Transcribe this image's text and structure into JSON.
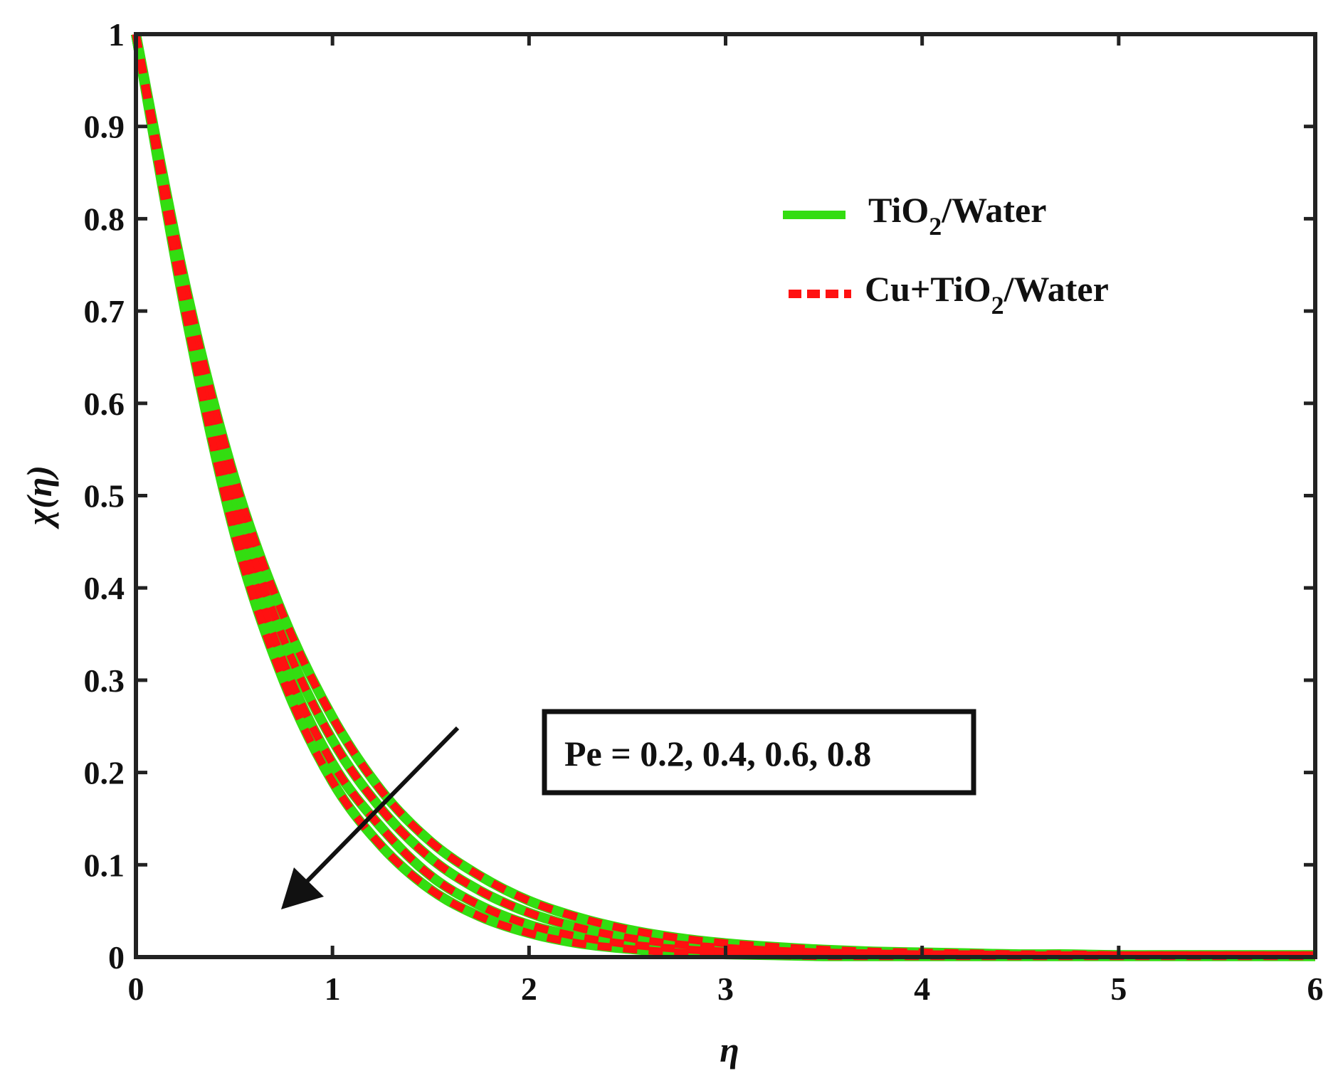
{
  "chart_data": {
    "type": "line",
    "xlabel": "η",
    "ylabel": "χ(η)",
    "xlim": [
      0,
      6
    ],
    "ylim": [
      0,
      1
    ],
    "x_ticks": [
      0,
      1,
      2,
      3,
      4,
      5,
      6
    ],
    "y_ticks": [
      0,
      0.1,
      0.2,
      0.3,
      0.4,
      0.5,
      0.6,
      0.7,
      0.8,
      0.9,
      1
    ],
    "x_tick_labels": [
      "0",
      "1",
      "2",
      "3",
      "4",
      "5",
      "6"
    ],
    "y_tick_labels": [
      "0",
      "0.1",
      "0.2",
      "0.3",
      "0.4",
      "0.5",
      "0.6",
      "0.7",
      "0.8",
      "0.9",
      "1"
    ],
    "grid": false,
    "legend_position": "top-right",
    "legend": [
      {
        "label": "TiO",
        "sub": "2",
        "suffix": "/Water",
        "color": "#33dd11",
        "style": "solid"
      },
      {
        "label": "Cu+TiO",
        "sub": "2",
        "suffix": "/Water",
        "color": "#ff1111",
        "style": "dashed"
      }
    ],
    "annotation": {
      "text": "Pe = 0.2, 0.4, 0.6, 0.8",
      "arrow": "decreasing direction"
    },
    "x": [
      0,
      0.25,
      0.5,
      0.75,
      1,
      1.25,
      1.5,
      1.75,
      2,
      2.25,
      2.5,
      2.75,
      3,
      3.25,
      3.5,
      3.75,
      4,
      4.25,
      4.5,
      4.75,
      5,
      5.25,
      5.5,
      5.75,
      6
    ],
    "series": [
      {
        "name": "TiO2/Water",
        "color": "#33dd11",
        "style": "solid",
        "curves": [
          [
            1.0,
            0.73,
            0.52,
            0.37,
            0.26,
            0.18,
            0.125,
            0.088,
            0.061,
            0.043,
            0.03,
            0.021,
            0.015,
            0.011,
            0.008,
            0.006,
            0.005,
            0.004,
            0.003,
            0.003,
            0.002,
            0.002,
            0.002,
            0.002,
            0.002
          ],
          [
            1.0,
            0.72,
            0.5,
            0.345,
            0.235,
            0.16,
            0.107,
            0.072,
            0.048,
            0.032,
            0.021,
            0.014,
            0.01,
            0.007,
            0.005,
            0.004,
            0.003,
            0.003,
            0.002,
            0.002,
            0.002,
            0.002,
            0.002,
            0.002,
            0.002
          ],
          [
            1.0,
            0.71,
            0.48,
            0.32,
            0.21,
            0.14,
            0.088,
            0.056,
            0.035,
            0.022,
            0.014,
            0.009,
            0.006,
            0.004,
            0.003,
            0.002,
            0.002,
            0.002,
            0.002,
            0.002,
            0.002,
            0.002,
            0.002,
            0.002,
            0.002
          ],
          [
            1.0,
            0.7,
            0.46,
            0.3,
            0.19,
            0.12,
            0.073,
            0.044,
            0.026,
            0.015,
            0.009,
            0.005,
            0.003,
            0.002,
            0.001,
            0.001,
            0.001,
            0.001,
            0.001,
            0.001,
            0.001,
            0.001,
            0.001,
            0.001,
            0.001
          ]
        ]
      },
      {
        "name": "Cu+TiO2/Water",
        "color": "#ff1111",
        "style": "dashed",
        "curves": [
          [
            1.0,
            0.73,
            0.52,
            0.37,
            0.26,
            0.18,
            0.125,
            0.088,
            0.061,
            0.043,
            0.03,
            0.021,
            0.015,
            0.011,
            0.008,
            0.006,
            0.005,
            0.004,
            0.003,
            0.003,
            0.002,
            0.002,
            0.002,
            0.002,
            0.002
          ],
          [
            1.0,
            0.72,
            0.5,
            0.345,
            0.235,
            0.16,
            0.107,
            0.072,
            0.048,
            0.032,
            0.021,
            0.014,
            0.01,
            0.007,
            0.005,
            0.004,
            0.003,
            0.003,
            0.002,
            0.002,
            0.002,
            0.002,
            0.002,
            0.002,
            0.002
          ],
          [
            1.0,
            0.71,
            0.48,
            0.32,
            0.21,
            0.14,
            0.088,
            0.056,
            0.035,
            0.022,
            0.014,
            0.009,
            0.006,
            0.004,
            0.003,
            0.002,
            0.002,
            0.002,
            0.002,
            0.002,
            0.002,
            0.002,
            0.002,
            0.002,
            0.002
          ],
          [
            1.0,
            0.7,
            0.46,
            0.3,
            0.19,
            0.12,
            0.073,
            0.044,
            0.026,
            0.015,
            0.009,
            0.005,
            0.003,
            0.002,
            0.001,
            0.001,
            0.001,
            0.001,
            0.001,
            0.001,
            0.001,
            0.001,
            0.001,
            0.001,
            0.001
          ]
        ]
      }
    ]
  }
}
